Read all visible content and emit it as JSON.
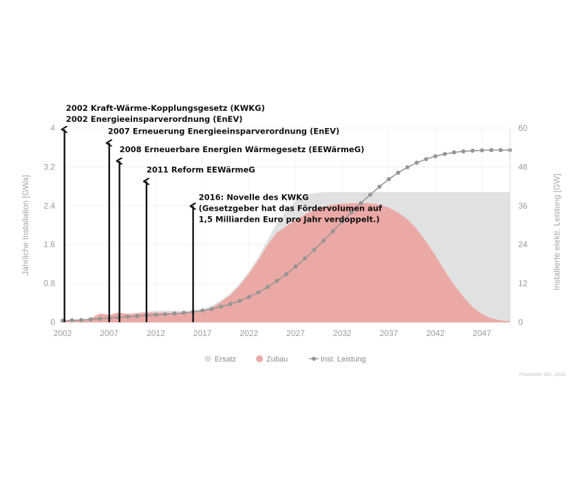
{
  "credit": "Fraunhofer IEE, 2018",
  "chart_data": {
    "type": "area",
    "xlabel": "",
    "ylabel_left": "Jährliche Installation [GWa]",
    "ylabel_right": "Installierte elektr. Leistung [GW]",
    "xlim": [
      2002,
      2050
    ],
    "ylim_left": [
      0,
      4
    ],
    "ylim_right": [
      0,
      60
    ],
    "x_ticks": [
      "2002",
      "2007",
      "2012",
      "2017",
      "2022",
      "2027",
      "2032",
      "2037",
      "2042",
      "2047"
    ],
    "y_left_ticks": [
      "0",
      "0.8",
      "1.6",
      "2.4",
      "3.2",
      "4"
    ],
    "y_right_ticks": [
      "0",
      "12",
      "24",
      "36",
      "48",
      "60"
    ],
    "grid": true,
    "legend_position": "bottom",
    "legend": [
      "Ersatz",
      "Zubau",
      "Inst. Leistung"
    ],
    "colors": {
      "ersatz": "#e0e1e1",
      "zubau": "#eba9a6",
      "inst_leistung": "#959595",
      "annotation": "#111111"
    },
    "x": [
      2002,
      2003,
      2004,
      2005,
      2006,
      2007,
      2008,
      2009,
      2010,
      2011,
      2012,
      2013,
      2014,
      2015,
      2016,
      2017,
      2018,
      2019,
      2020,
      2021,
      2022,
      2023,
      2024,
      2025,
      2026,
      2027,
      2028,
      2029,
      2030,
      2031,
      2032,
      2033,
      2034,
      2035,
      2036,
      2037,
      2038,
      2039,
      2040,
      2041,
      2042,
      2043,
      2044,
      2045,
      2046,
      2047,
      2048,
      2049,
      2050
    ],
    "series": [
      {
        "name": "Ersatz",
        "axis": "left",
        "values": [
          0.03,
          0.04,
          0.04,
          0.08,
          0.15,
          0.15,
          0.18,
          0.17,
          0.2,
          0.22,
          0.24,
          0.24,
          0.24,
          0.24,
          0.25,
          0.28,
          0.34,
          0.45,
          0.6,
          0.8,
          1.05,
          1.35,
          1.7,
          2.05,
          2.3,
          2.5,
          2.62,
          2.66,
          2.68,
          2.68,
          2.68,
          2.68,
          2.68,
          2.68,
          2.68,
          2.68,
          2.68,
          2.68,
          2.68,
          2.68,
          2.68,
          2.68,
          2.68,
          2.68,
          2.68,
          2.68,
          2.68,
          2.68,
          2.68
        ]
      },
      {
        "name": "Zubau",
        "axis": "left",
        "values": [
          0.03,
          0.04,
          0.04,
          0.08,
          0.18,
          0.15,
          0.2,
          0.17,
          0.18,
          0.2,
          0.2,
          0.2,
          0.19,
          0.19,
          0.2,
          0.23,
          0.3,
          0.42,
          0.56,
          0.76,
          1.0,
          1.28,
          1.6,
          1.85,
          1.98,
          2.1,
          2.22,
          2.32,
          2.38,
          2.42,
          2.44,
          2.45,
          2.46,
          2.45,
          2.42,
          2.36,
          2.26,
          2.12,
          1.92,
          1.66,
          1.37,
          1.06,
          0.77,
          0.52,
          0.31,
          0.17,
          0.08,
          0.04,
          0.02
        ]
      },
      {
        "name": "Inst. Leistung",
        "axis": "right",
        "values": [
          0.5,
          0.6,
          0.7,
          0.9,
          1.1,
          1.3,
          1.5,
          1.7,
          1.9,
          2.1,
          2.3,
          2.5,
          2.7,
          2.9,
          3.2,
          3.6,
          4.1,
          4.8,
          5.6,
          6.6,
          7.8,
          9.2,
          10.9,
          12.8,
          14.9,
          17.2,
          19.7,
          22.4,
          25.2,
          28.1,
          31.1,
          34.0,
          36.8,
          39.4,
          41.9,
          44.2,
          46.2,
          47.9,
          49.3,
          50.4,
          51.3,
          52.0,
          52.5,
          52.8,
          53.0,
          53.1,
          53.2,
          53.2,
          53.2
        ]
      }
    ],
    "annotations": [
      {
        "x": 2002.2,
        "y": 4.0,
        "lines": [
          "2002 Kraft-Wärme-Kopplungsgesetz (KWKG)",
          "2002 Energieeinsparverordnung (EnEV)"
        ]
      },
      {
        "x": 2007.0,
        "y": 3.72,
        "lines": [
          "2007 Erneuerung Energieeinsparverordnung (EnEV)"
        ]
      },
      {
        "x": 2008.1,
        "y": 3.35,
        "lines": [
          "2008 Erneuerbare Energien Wärmegesetz (EEWärmeG)"
        ]
      },
      {
        "x": 2011.0,
        "y": 2.93,
        "lines": [
          "2011 Reform EEWärmeG"
        ]
      },
      {
        "x": 2016.0,
        "y": 2.42,
        "lines": [
          "2016: Novelle des KWKG",
          "(Gesetzgeber hat das Fördervolumen auf",
          "1,5 Milliarden Euro pro Jahr verdoppelt.)"
        ]
      }
    ]
  }
}
